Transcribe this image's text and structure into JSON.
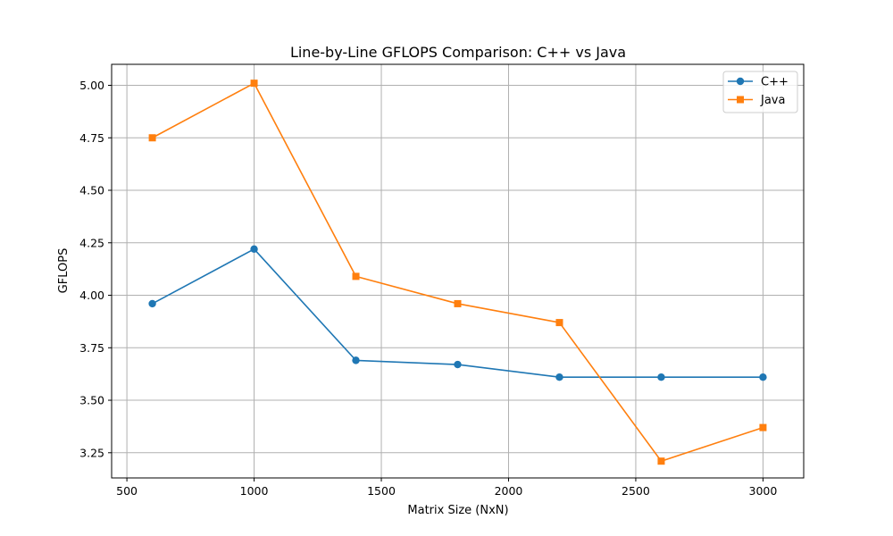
{
  "chart_data": {
    "type": "line",
    "title": "Line-by-Line GFLOPS Comparison: C++ vs Java",
    "xlabel": "Matrix Size (NxN)",
    "ylabel": "GFLOPS",
    "x": [
      600,
      1000,
      1400,
      1800,
      2200,
      2600,
      3000
    ],
    "xlim": [
      440,
      3160
    ],
    "ylim": [
      3.13,
      5.1
    ],
    "xticks": [
      500,
      1000,
      1500,
      2000,
      2500,
      3000
    ],
    "xtick_labels": [
      "500",
      "1000",
      "1500",
      "2000",
      "2500",
      "3000"
    ],
    "yticks": [
      3.25,
      3.5,
      3.75,
      4.0,
      4.25,
      4.5,
      4.75,
      5.0
    ],
    "ytick_labels": [
      "3.25",
      "3.50",
      "3.75",
      "4.00",
      "4.25",
      "4.50",
      "4.75",
      "5.00"
    ],
    "grid": true,
    "legend_position": "top-right",
    "series": [
      {
        "name": "C++",
        "color": "#1f77b4",
        "marker": "circle",
        "values": [
          3.96,
          4.22,
          3.69,
          3.67,
          3.61,
          3.61,
          3.61
        ]
      },
      {
        "name": "Java",
        "color": "#ff7f0e",
        "marker": "square",
        "values": [
          4.75,
          5.01,
          4.09,
          3.96,
          3.87,
          3.21,
          3.37
        ]
      }
    ]
  }
}
